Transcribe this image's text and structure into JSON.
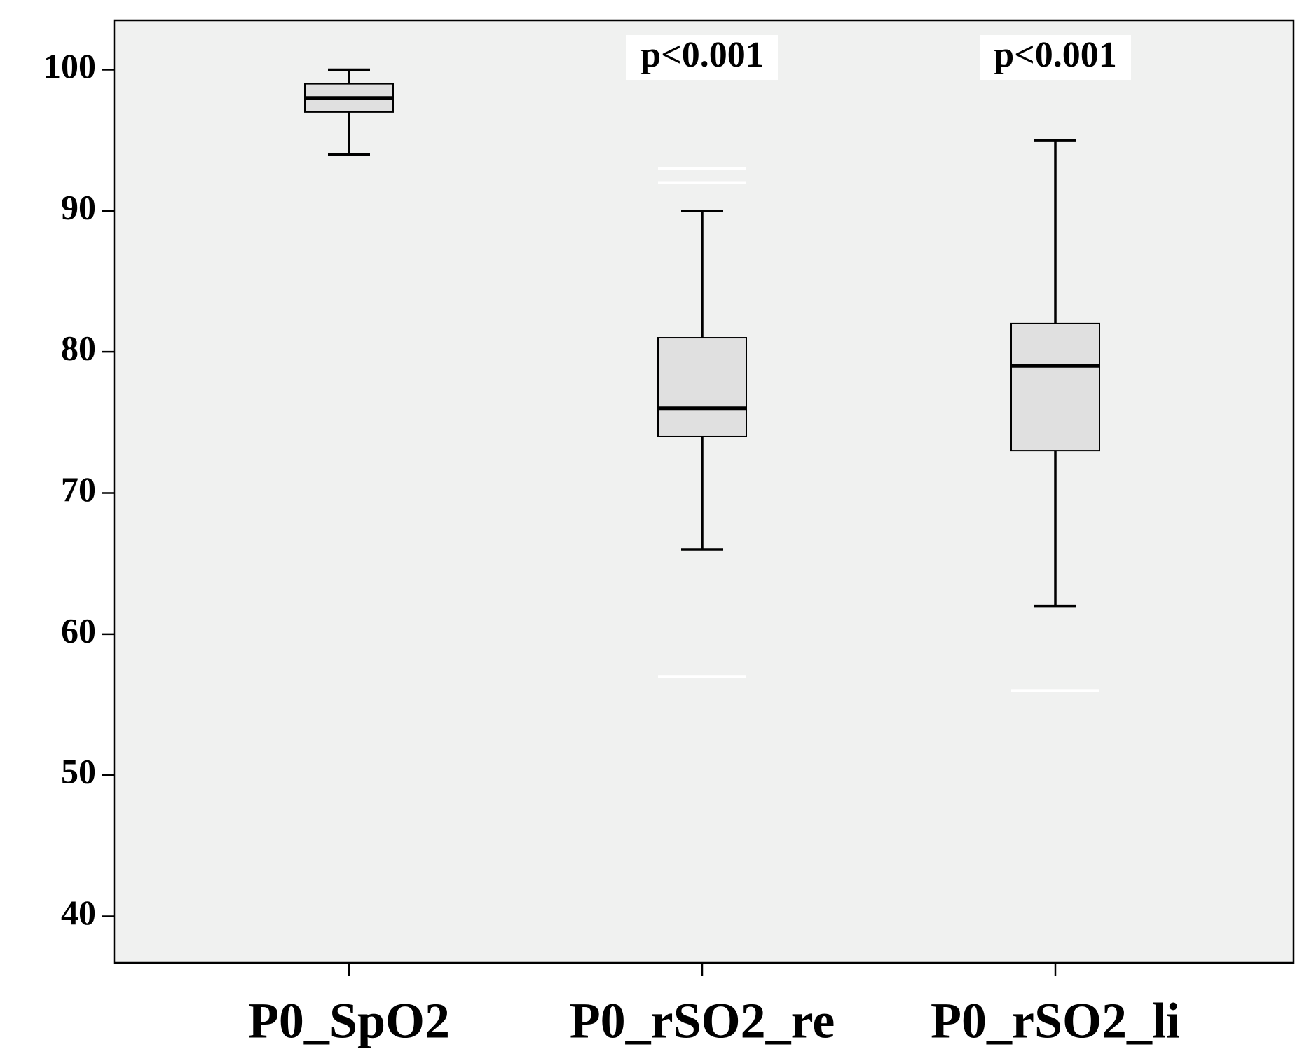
{
  "chart_data": {
    "type": "boxplot",
    "categories": [
      "P0_SpO2",
      "P0_rSO2_re",
      "P0_rSO2_li"
    ],
    "boxes": [
      {
        "min": 94,
        "q1": 97,
        "median": 98,
        "q3": 99,
        "max": 100,
        "outliers": []
      },
      {
        "min": 66,
        "q1": 74,
        "median": 76,
        "q3": 81,
        "max": 90,
        "outliers": [
          93,
          92,
          57
        ]
      },
      {
        "min": 62,
        "q1": 73,
        "median": 79,
        "q3": 82,
        "max": 95,
        "outliers": [
          56
        ]
      }
    ],
    "annotations": [
      null,
      "p<0.001",
      "p<0.001"
    ],
    "ylim": [
      36.7,
      103.5
    ],
    "yticks": [
      40,
      50,
      60,
      70,
      80,
      90,
      100
    ],
    "box_color": "#e0e0e0",
    "outlier_color": "#ffffff",
    "background": "#f0f1f0"
  }
}
